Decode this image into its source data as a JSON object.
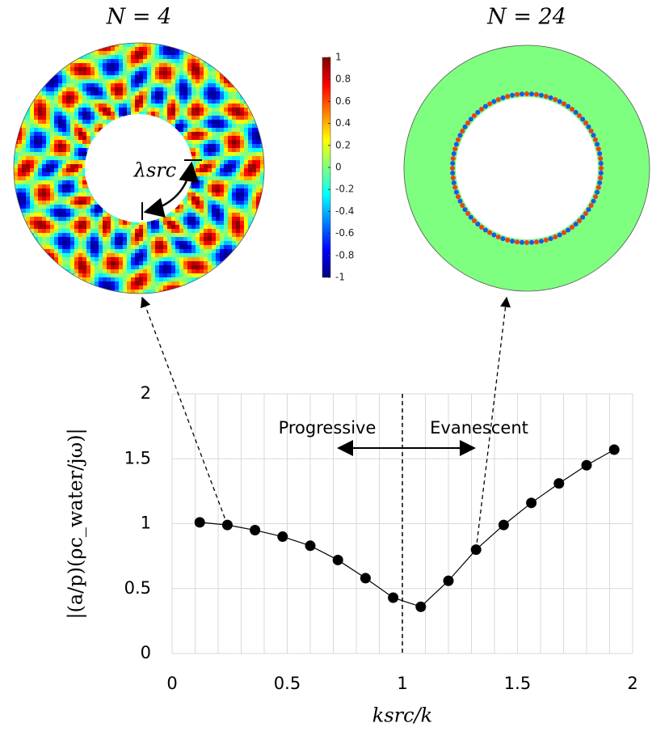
{
  "chart_data": [
    {
      "type": "field",
      "title": "N = 4",
      "annotation": "λsrc"
    },
    {
      "type": "field",
      "title": "N = 24"
    },
    {
      "type": "colorbar",
      "ylim": [
        -1,
        1
      ],
      "yticks": [
        1,
        0.8,
        0.6,
        0.4,
        0.2,
        0,
        -0.2,
        -0.4,
        -0.6,
        -0.8,
        -1
      ]
    },
    {
      "type": "line",
      "xlabel": "ksrc/k",
      "ylabel": "|(a/p)(ρc_water/jω)|",
      "x": [
        0.12,
        0.24,
        0.36,
        0.48,
        0.6,
        0.72,
        0.84,
        0.96,
        1.08,
        1.2,
        1.32,
        1.44,
        1.56,
        1.68,
        1.8,
        1.92
      ],
      "y": [
        1.01,
        0.99,
        0.95,
        0.9,
        0.83,
        0.72,
        0.58,
        0.43,
        0.36,
        0.56,
        0.8,
        0.99,
        1.16,
        1.31,
        1.45,
        1.57
      ],
      "color": "#000000",
      "xlim": [
        0,
        2
      ],
      "ylim": [
        0,
        2
      ],
      "xticks": [
        0,
        0.5,
        1,
        1.5,
        2
      ],
      "yticks": [
        0,
        0.5,
        1,
        1.5,
        2
      ],
      "xgrid": [
        0,
        0.1,
        0.2,
        0.3,
        0.4,
        0.5,
        0.6,
        0.7,
        0.8,
        0.9,
        1,
        1.1,
        1.2,
        1.3,
        1.4,
        1.5,
        1.6,
        1.7,
        1.8,
        1.9,
        2
      ],
      "vline": 1,
      "annotations": [
        "Progressive",
        "Evanescent"
      ]
    }
  ]
}
